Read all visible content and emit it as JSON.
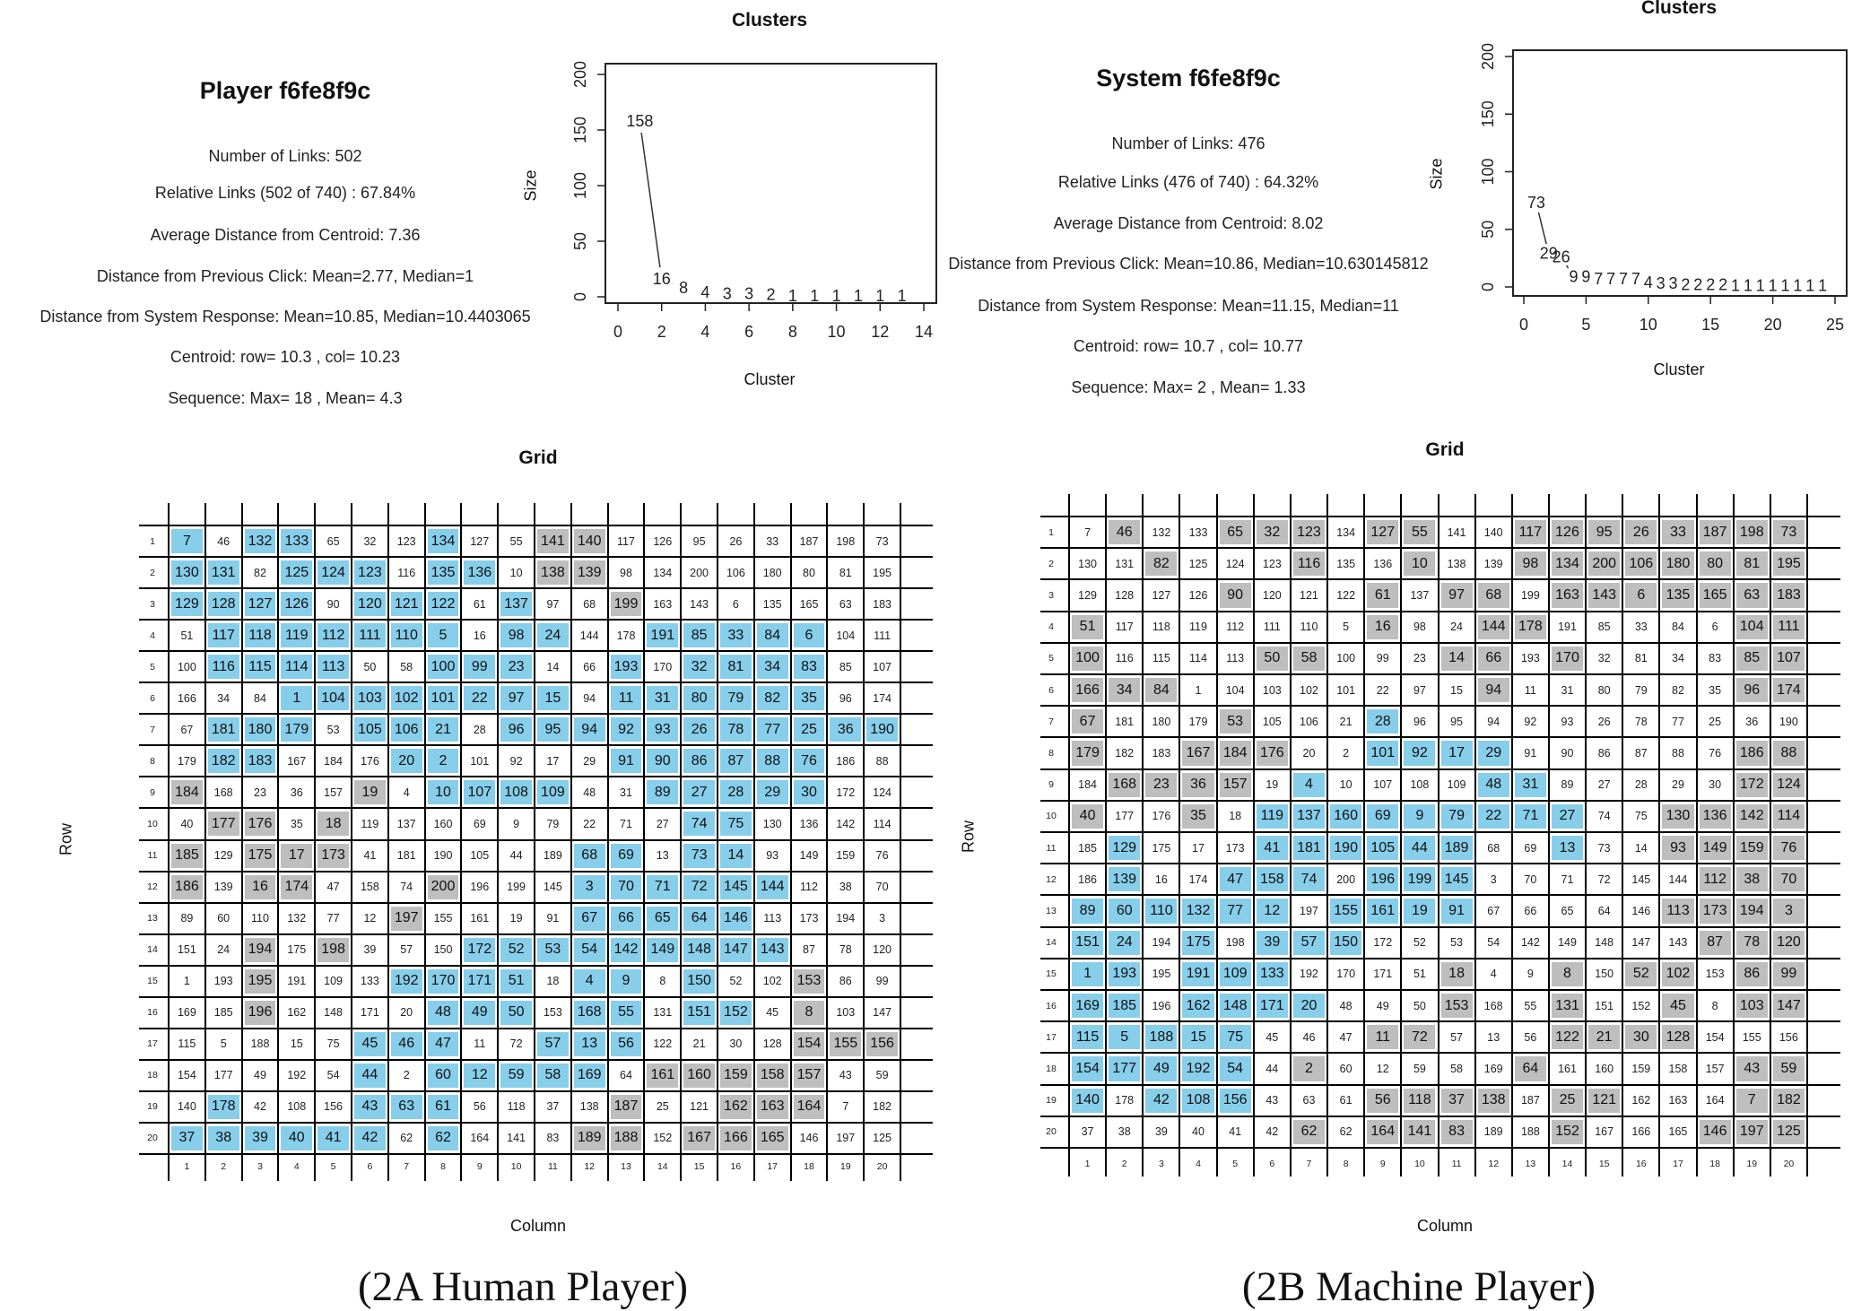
{
  "colors": {
    "highlight_blue": "#87CEEB",
    "highlight_gray": "#BEBEBE",
    "grid_line": "#000000"
  },
  "panels": [
    {
      "title": "Player f6fe8f9c",
      "stats": [
        "Number of Links: 502",
        "Relative Links (502 of 740) : 67.84%",
        "Average Distance from Centroid: 7.36",
        "Distance from Previous Click: Mean=2.77, Median=1",
        "Distance from System Response: Mean=10.85, Median=10.4403065",
        "Centroid: row= 10.3 ,  col= 10.23",
        "Sequence: Max= 18 ,  Mean= 4.3"
      ],
      "caption": "(2A Human Player)"
    },
    {
      "title": "System f6fe8f9c",
      "stats": [
        "Number of Links: 476",
        "Relative Links (476 of 740) : 64.32%",
        "Average Distance from Centroid: 8.02",
        "Distance from Previous Click: Mean=10.86, Median=10.630145812",
        "Distance from System Response: Mean=11.15, Median=11",
        "Centroid: row= 10.7 ,  col= 10.77",
        "Sequence: Max= 2 ,  Mean= 1.33"
      ],
      "caption": "(2B Machine Player)"
    }
  ],
  "chart_data": [
    {
      "type": "line",
      "title": "Clusters",
      "xlabel": "Cluster",
      "ylabel": "Size",
      "xlim": [
        0,
        14
      ],
      "ylim": [
        0,
        200
      ],
      "xticks": [
        0,
        2,
        4,
        6,
        8,
        10,
        12,
        14
      ],
      "yticks": [
        0,
        50,
        100,
        150,
        200
      ],
      "point_labels": true,
      "x": [
        1,
        2,
        3,
        4,
        5,
        6,
        7,
        8,
        9,
        10,
        11,
        12,
        13
      ],
      "y": [
        158,
        16,
        8,
        4,
        3,
        3,
        2,
        1,
        1,
        1,
        1,
        1,
        1
      ]
    },
    {
      "type": "line",
      "title": "Clusters",
      "xlabel": "Cluster",
      "ylabel": "Size",
      "xlim": [
        0,
        25
      ],
      "ylim": [
        0,
        200
      ],
      "xticks": [
        0,
        5,
        10,
        15,
        20,
        25
      ],
      "yticks": [
        0,
        50,
        100,
        150,
        200
      ],
      "point_labels": true,
      "x": [
        1,
        2,
        3,
        4,
        5,
        6,
        7,
        8,
        9,
        10,
        11,
        12,
        13,
        14,
        15,
        16,
        17,
        18,
        19,
        20,
        21,
        22,
        23,
        24
      ],
      "y": [
        73,
        29,
        26,
        9,
        9,
        7,
        7,
        7,
        7,
        4,
        3,
        3,
        2,
        2,
        2,
        2,
        1,
        1,
        1,
        1,
        1,
        1,
        1,
        1
      ]
    },
    {
      "type": "table",
      "title": "Grid",
      "xlabel": "Column",
      "ylabel": "Row",
      "highlight_legend": {
        "B": "blue",
        "G": "gray",
        ".": "none"
      },
      "highlight": [
        "B.BB...B..GG........",
        "BB.BBB.BB.GG........",
        "BBBB.BBB.B..G.......",
        ".BBBBBBB.BB..BBBBB..",
        ".BBBB..BBB..B.BBBB..",
        "...BBBBBBBB.BBBBBB..",
        ".BBB.BBB.BBBBBBBBBBB",
        ".BB...BB....BBBBBB..",
        "G....G.BBBB..BBBBB..",
        ".GG.G.........BB....",
        "G.GGG......BB.BB....",
        "G.GG...G...BBBBBB...",
        "......G....BBBBB....",
        "..G.G...BBBBBBBBB...",
        "..G...BBBB.BB.B..G..",
        "..G....BBB.BB.BB.G..",
        ".....BBB..BBB....GGG",
        ".....B.BBBBB.GGGGG..",
        ".B...BBB....G..GGG..",
        "BBBBBB.B...GG.GGG..."
      ]
    },
    {
      "type": "table",
      "title": "Grid",
      "xlabel": "Column",
      "ylabel": "Row",
      "highlight_legend": {
        "B": "blue",
        "G": "gray",
        ".": "none"
      },
      "highlight": [
        ".G..GGG.GG..GGGGGGGG",
        "..G...G..G..GGGGGGGG",
        "....G...G.GG.GGGGGGG",
        "G.......G..GG.....GG",
        "G....GG...GG.G....GG",
        "GGG........G......GG",
        "G...G...B...........",
        "G..GGG..BBBB......GG",
        ".GGGG.B....BB.....GG",
        "G..G.BBBBBBBBB..GGGG",
        ".B...BBBBBB..B..GGGG",
        ".B..BBB.BBB......GGG",
        "BBBBBB.BBBB.....GGGG",
        "BB.B.BBB.........GGG",
        "BB.BBB....G..G.GG.GG",
        "BB.BBBB...G..G..G.GG",
        "BBBBB...GG...GGGG...",
        "BBBBB.G.....G.....GG",
        "B.BBB...GGGG.GG...GG",
        "......G.GGG..G...GGG"
      ]
    }
  ],
  "cell_values": [
    [
      7,
      46,
      132,
      133,
      65,
      32,
      123,
      134,
      127,
      55,
      141,
      140,
      117,
      126,
      95,
      26,
      33,
      187,
      198,
      73
    ],
    [
      130,
      131,
      82,
      125,
      124,
      123,
      116,
      135,
      136,
      10,
      138,
      139,
      98,
      134,
      200,
      106,
      180,
      80,
      81,
      195
    ],
    [
      129,
      128,
      127,
      126,
      90,
      120,
      121,
      122,
      61,
      137,
      97,
      68,
      199,
      163,
      143,
      6,
      135,
      165,
      63,
      183
    ],
    [
      51,
      117,
      118,
      119,
      112,
      111,
      110,
      5,
      16,
      98,
      24,
      144,
      178,
      191,
      85,
      33,
      84,
      6,
      104,
      111
    ],
    [
      100,
      116,
      115,
      114,
      113,
      50,
      58,
      100,
      99,
      23,
      14,
      66,
      193,
      170,
      32,
      81,
      34,
      83,
      85,
      107
    ],
    [
      166,
      34,
      84,
      1,
      104,
      103,
      102,
      101,
      22,
      97,
      15,
      94,
      11,
      31,
      80,
      79,
      82,
      35,
      96,
      174
    ],
    [
      67,
      181,
      180,
      179,
      53,
      105,
      106,
      21,
      28,
      96,
      95,
      94,
      92,
      93,
      26,
      78,
      77,
      25,
      36,
      190
    ],
    [
      179,
      182,
      183,
      167,
      184,
      176,
      20,
      2,
      101,
      92,
      17,
      29,
      91,
      90,
      86,
      87,
      88,
      76,
      186,
      88
    ],
    [
      184,
      168,
      23,
      36,
      157,
      19,
      4,
      10,
      107,
      108,
      109,
      48,
      31,
      89,
      27,
      28,
      29,
      30,
      172,
      124
    ],
    [
      40,
      177,
      176,
      35,
      18,
      119,
      137,
      160,
      69,
      9,
      79,
      22,
      71,
      27,
      74,
      75,
      130,
      136,
      142,
      114
    ],
    [
      185,
      129,
      175,
      17,
      173,
      41,
      181,
      190,
      105,
      44,
      189,
      68,
      69,
      13,
      73,
      14,
      93,
      149,
      159,
      76
    ],
    [
      186,
      139,
      16,
      174,
      47,
      158,
      74,
      200,
      196,
      199,
      145,
      3,
      70,
      71,
      72,
      145,
      144,
      112,
      38,
      70
    ],
    [
      89,
      60,
      110,
      132,
      77,
      12,
      197,
      155,
      161,
      19,
      91,
      67,
      66,
      65,
      64,
      146,
      113,
      173,
      194,
      3
    ],
    [
      151,
      24,
      194,
      175,
      198,
      39,
      57,
      150,
      172,
      52,
      53,
      54,
      142,
      149,
      148,
      147,
      143,
      87,
      78,
      120
    ],
    [
      1,
      193,
      195,
      191,
      109,
      133,
      192,
      170,
      171,
      51,
      18,
      4,
      9,
      8,
      150,
      52,
      102,
      153,
      86,
      99
    ],
    [
      169,
      185,
      196,
      162,
      148,
      171,
      20,
      48,
      49,
      50,
      153,
      168,
      55,
      131,
      151,
      152,
      45,
      8,
      103,
      147
    ],
    [
      115,
      5,
      188,
      15,
      75,
      45,
      46,
      47,
      11,
      72,
      57,
      13,
      56,
      122,
      21,
      30,
      128,
      154,
      155,
      156
    ],
    [
      154,
      177,
      49,
      192,
      54,
      44,
      2,
      60,
      12,
      59,
      58,
      169,
      64,
      161,
      160,
      159,
      158,
      157,
      43,
      59
    ],
    [
      140,
      178,
      42,
      108,
      156,
      43,
      63,
      61,
      56,
      118,
      37,
      138,
      187,
      25,
      121,
      162,
      163,
      164,
      7,
      182
    ],
    [
      37,
      38,
      39,
      40,
      41,
      42,
      62,
      62,
      164,
      141,
      83,
      189,
      188,
      152,
      167,
      166,
      165,
      146,
      197,
      125
    ]
  ]
}
